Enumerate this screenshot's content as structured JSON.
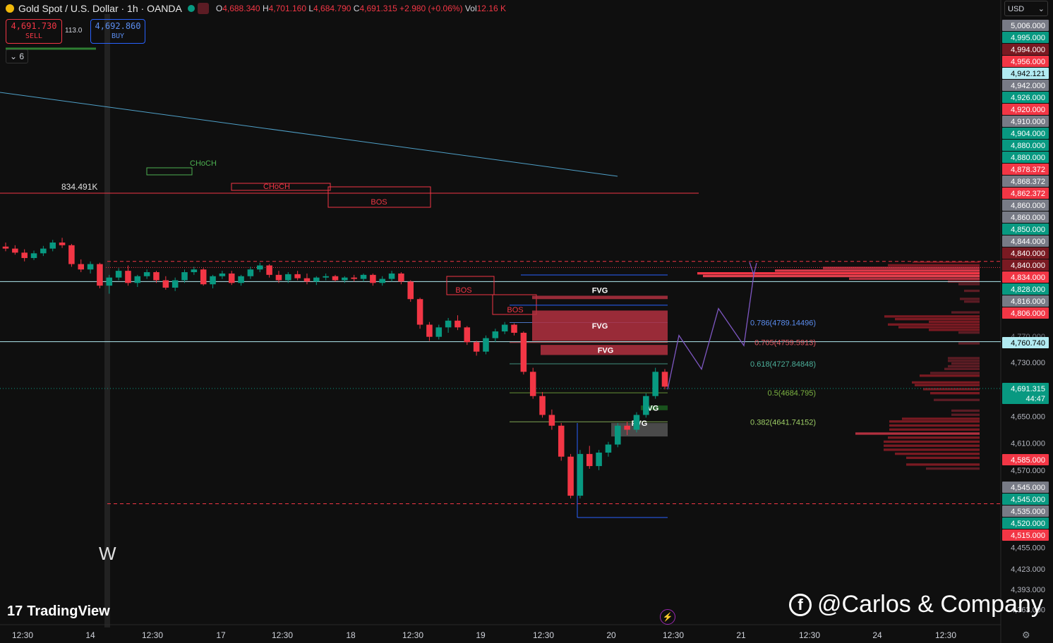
{
  "header": {
    "symbol": "Gold Spot / U.S. Dollar · 1h · OANDA",
    "open_label": "O",
    "open": "4,688.340",
    "high_label": "H",
    "high": "4,701.160",
    "low_label": "L",
    "low": "4,684.790",
    "close_label": "C",
    "close": "4,691.315",
    "change": "+2.980 (+0.06%)",
    "vol_label": "Vol",
    "vol": "12.16 K"
  },
  "trade": {
    "sell_price": "4,691.730",
    "sell_label": "SELL",
    "spread": "113.0",
    "buy_price": "4,692.860",
    "buy_label": "BUY"
  },
  "legend_toggle": "6",
  "currency": "USD",
  "logo_text": "TradingView",
  "watermark": "@Carlos & Company",
  "chart_label_w": "W",
  "colors": {
    "up": "#089981",
    "down": "#f23645",
    "fvg": "#b2303f",
    "fib": "#2962ff",
    "trend": "#4fa0c8",
    "path": "#7e57c2"
  },
  "chart_data": {
    "type": "candlestick",
    "y_axis": {
      "min": 4363,
      "max": 5006,
      "ticks": [
        "4,730.000",
        "4,650.000",
        "4,610.000",
        "4,570.000",
        "4,455.000",
        "4,423.000",
        "4,393.000",
        "4,363.000"
      ],
      "tick_values": [
        4730,
        4650,
        4610,
        4570,
        4455,
        4423,
        4393,
        4363
      ]
    },
    "x_axis": {
      "ticks": [
        "12:30",
        "14",
        "12:30",
        "17",
        "12:30",
        "18",
        "12:30",
        "19",
        "12:30",
        "20",
        "12:30",
        "21",
        "12:30",
        "24",
        "12:30"
      ]
    },
    "price_tags": [
      {
        "label": "5,006.000",
        "value": 5006,
        "color": "#787b86"
      },
      {
        "label": "4,995.000",
        "value": 4995,
        "color": "#089981"
      },
      {
        "label": "4,994.000",
        "value": 4994,
        "color": "#7a1a22"
      },
      {
        "label": "4,956.000",
        "value": 4956,
        "color": "#f23645"
      },
      {
        "label": "4,942.121",
        "value": 4942,
        "color": "#b2ebf2"
      },
      {
        "label": "4,942.000",
        "value": 4942,
        "color": "#787b86"
      },
      {
        "label": "4,926.000",
        "value": 4926,
        "color": "#089981"
      },
      {
        "label": "4,920.000",
        "value": 4920,
        "color": "#f23645"
      },
      {
        "label": "4,910.000",
        "value": 4910,
        "color": "#787b86"
      },
      {
        "label": "4,904.000",
        "value": 4904,
        "color": "#089981"
      },
      {
        "label": "4,880.000",
        "value": 4880,
        "color": "#089981"
      },
      {
        "label": "4,880.000",
        "value": 4880,
        "color": "#089981"
      },
      {
        "label": "4,878.372",
        "value": 4878,
        "color": "#f23645"
      },
      {
        "label": "4,868.372",
        "value": 4868,
        "color": "#787b86"
      },
      {
        "label": "4,862.372",
        "value": 4862,
        "color": "#f23645"
      },
      {
        "label": "4,860.000",
        "value": 4860,
        "color": "#787b86"
      },
      {
        "label": "4,860.000",
        "value": 4860,
        "color": "#787b86"
      },
      {
        "label": "4,850.000",
        "value": 4850,
        "color": "#089981"
      },
      {
        "label": "4,844.000",
        "value": 4844,
        "color": "#787b86"
      },
      {
        "label": "4,840.000",
        "value": 4840,
        "color": "#7a1a22"
      },
      {
        "label": "4,840.000",
        "value": 4840,
        "color": "#7a1a22"
      },
      {
        "label": "4,834.000",
        "value": 4834,
        "color": "#f23645"
      },
      {
        "label": "4,828.000",
        "value": 4828,
        "color": "#089981"
      },
      {
        "label": "4,816.000",
        "value": 4816,
        "color": "#787b86"
      },
      {
        "label": "4,806.000",
        "value": 4806,
        "color": "#f23645"
      },
      {
        "label": "4,770.000",
        "value": 4770,
        "color": "none"
      },
      {
        "label": "4,760.740",
        "value": 4760.74,
        "color": "#b2ebf2"
      },
      {
        "label": "4,691.315",
        "value": 4691.315,
        "color": "#089981"
      },
      {
        "label": "44:47",
        "value": 4681,
        "color": "#089981"
      },
      {
        "label": "4,585.000",
        "value": 4585,
        "color": "#f23645"
      },
      {
        "label": "4,545.000",
        "value": 4545,
        "color": "#787b86"
      },
      {
        "label": "4,545.000",
        "value": 4545,
        "color": "#089981"
      },
      {
        "label": "4,535.000",
        "value": 4535,
        "color": "#787b86"
      },
      {
        "label": "4,520.000",
        "value": 4520,
        "color": "#089981"
      },
      {
        "label": "4,515.000",
        "value": 4515,
        "color": "#f23645"
      }
    ],
    "candles": [
      [
        4902,
        4908,
        4895,
        4899
      ],
      [
        4899,
        4904,
        4890,
        4893
      ],
      [
        4893,
        4898,
        4880,
        4885
      ],
      [
        4885,
        4896,
        4882,
        4892
      ],
      [
        4892,
        4903,
        4888,
        4899
      ],
      [
        4899,
        4912,
        4895,
        4908
      ],
      [
        4908,
        4915,
        4900,
        4904
      ],
      [
        4904,
        4906,
        4872,
        4876
      ],
      [
        4876,
        4883,
        4864,
        4868
      ],
      [
        4868,
        4880,
        4862,
        4876
      ],
      [
        4876,
        4878,
        4840,
        4844
      ],
      [
        4844,
        4860,
        4832,
        4856
      ],
      [
        4856,
        4870,
        4852,
        4866
      ],
      [
        4866,
        4874,
        4844,
        4848
      ],
      [
        4848,
        4860,
        4842,
        4858
      ],
      [
        4858,
        4868,
        4854,
        4864
      ],
      [
        4864,
        4866,
        4848,
        4852
      ],
      [
        4852,
        4858,
        4838,
        4841
      ],
      [
        4841,
        4856,
        4836,
        4852
      ],
      [
        4852,
        4868,
        4848,
        4864
      ],
      [
        4864,
        4872,
        4860,
        4868
      ],
      [
        4868,
        4870,
        4844,
        4846
      ],
      [
        4846,
        4860,
        4840,
        4858
      ],
      [
        4858,
        4866,
        4854,
        4862
      ],
      [
        4862,
        4866,
        4845,
        4848
      ],
      [
        4848,
        4860,
        4844,
        4858
      ],
      [
        4858,
        4872,
        4854,
        4868
      ],
      [
        4868,
        4878,
        4864,
        4874
      ],
      [
        4874,
        4876,
        4856,
        4860
      ],
      [
        4860,
        4866,
        4848,
        4852
      ],
      [
        4852,
        4864,
        4848,
        4861
      ],
      [
        4861,
        4866,
        4852,
        4855
      ],
      [
        4855,
        4862,
        4846,
        4850
      ],
      [
        4850,
        4858,
        4845,
        4856
      ],
      [
        4856,
        4862,
        4852,
        4858
      ],
      [
        4858,
        4860,
        4850,
        4852
      ],
      [
        4852,
        4858,
        4848,
        4856
      ],
      [
        4856,
        4860,
        4850,
        4854
      ],
      [
        4854,
        4862,
        4850,
        4860
      ],
      [
        4860,
        4862,
        4844,
        4848
      ],
      [
        4848,
        4858,
        4844,
        4854
      ],
      [
        4854,
        4866,
        4850,
        4862
      ],
      [
        4862,
        4864,
        4846,
        4850
      ],
      [
        4850,
        4852,
        4820,
        4824
      ],
      [
        4824,
        4826,
        4780,
        4786
      ],
      [
        4786,
        4790,
        4762,
        4768
      ],
      [
        4768,
        4786,
        4764,
        4782
      ],
      [
        4782,
        4796,
        4774,
        4792
      ],
      [
        4792,
        4800,
        4778,
        4782
      ],
      [
        4782,
        4784,
        4756,
        4760
      ],
      [
        4760,
        4762,
        4740,
        4746
      ],
      [
        4746,
        4770,
        4742,
        4766
      ],
      [
        4766,
        4780,
        4760,
        4776
      ],
      [
        4776,
        4790,
        4772,
        4786
      ],
      [
        4786,
        4788,
        4770,
        4774
      ],
      [
        4774,
        4776,
        4712,
        4716
      ],
      [
        4716,
        4722,
        4676,
        4680
      ],
      [
        4680,
        4686,
        4648,
        4652
      ],
      [
        4652,
        4660,
        4630,
        4636
      ],
      [
        4636,
        4640,
        4584,
        4590
      ],
      [
        4590,
        4594,
        4528,
        4532
      ],
      [
        4532,
        4600,
        4528,
        4594
      ],
      [
        4594,
        4606,
        4572,
        4576
      ],
      [
        4576,
        4600,
        4570,
        4596
      ],
      [
        4596,
        4612,
        4590,
        4608
      ],
      [
        4608,
        4640,
        4604,
        4636
      ],
      [
        4636,
        4642,
        4622,
        4630
      ],
      [
        4630,
        4656,
        4626,
        4652
      ],
      [
        4652,
        4684,
        4648,
        4680
      ],
      [
        4680,
        4722,
        4676,
        4716
      ],
      [
        4716,
        4720,
        4690,
        4694
      ]
    ],
    "fib_levels": [
      {
        "label": "0.786(4789.14496)",
        "value": 4789.14496,
        "color": "#5b8def"
      },
      {
        "label": "0.705(4759.5913)",
        "value": 4759.5913,
        "color": "#e05560"
      },
      {
        "label": "0.618(4727.84848)",
        "value": 4727.84848,
        "color": "#4caf9a"
      },
      {
        "label": "0.5(4684.795)",
        "value": 4684.795,
        "color": "#7cb342"
      },
      {
        "label": "0.382(4641.74152)",
        "value": 4641.74152,
        "color": "#9ccc65"
      }
    ],
    "zones": [
      {
        "label": "FVG",
        "y1": 4829,
        "y2": 4824,
        "color": "#b2303f"
      },
      {
        "label": "FVG",
        "y1": 4807,
        "y2": 4762,
        "color": "#b2303f"
      },
      {
        "label": "FVG",
        "y1": 4756,
        "y2": 4741,
        "color": "#b2303f"
      },
      {
        "label": "FVG",
        "y1": 4666,
        "y2": 4659,
        "color": "#1b5e20"
      },
      {
        "label": "FVG",
        "y1": 4640,
        "y2": 4620,
        "color": "#555555"
      }
    ],
    "structure": [
      {
        "label": "CHoCH",
        "color": "#4caf50"
      },
      {
        "label": "CHoCH",
        "color": "#f23645"
      },
      {
        "label": "BOS",
        "color": "#f23645"
      },
      {
        "label": "BOS",
        "color": "#f23645"
      },
      {
        "label": "BOS",
        "color": "#f23645"
      }
    ],
    "volume_label": "834.491K",
    "lines": {
      "resistance_dashed": 4880,
      "support_dashed": 4520,
      "h_line_upper": 4850,
      "h_line_lower": 4760.74,
      "current_price": 4691.315
    },
    "projection": [
      4690,
      4770,
      4720,
      4810,
      4755,
      4860
    ]
  }
}
